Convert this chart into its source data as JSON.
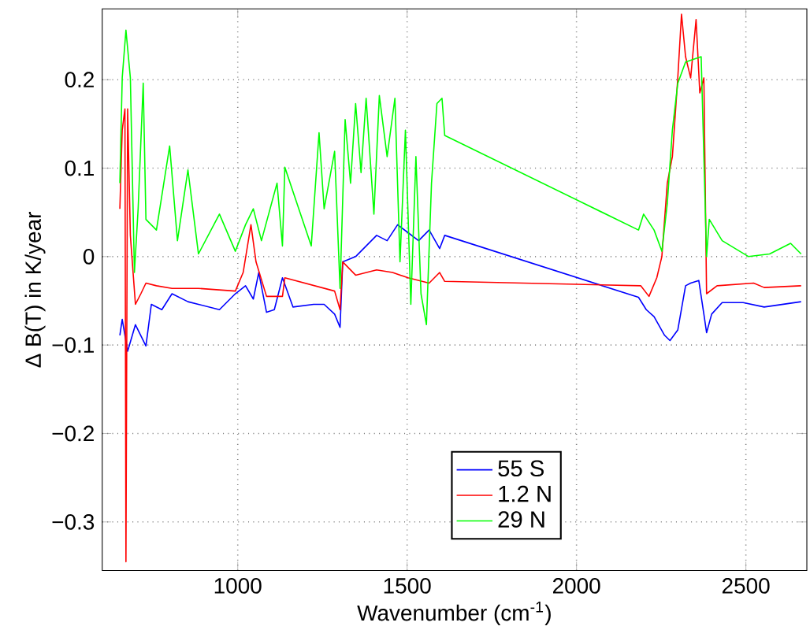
{
  "chart_data": {
    "type": "line",
    "xlabel": "Wavenumber (cm$^{-1}$)",
    "ylabel": "Δ B(T) in K/year",
    "xlim": [
      600,
      2680
    ],
    "ylim": [
      -0.355,
      0.28
    ],
    "xticks": [
      1000,
      1500,
      2000,
      2500
    ],
    "yticks": [
      {
        "value": -0.3,
        "label": "−0.3"
      },
      {
        "value": -0.2,
        "label": "−0.2"
      },
      {
        "value": -0.1,
        "label": "−0.1"
      },
      0,
      0.1,
      0.2
    ],
    "grid": true,
    "legend": "bottom",
    "marker": "none",
    "line_style": "solid",
    "series": [
      {
        "name": "55 S",
        "color": "#0000ff",
        "x": [
          652,
          659,
          675,
          698,
          729,
          745,
          776,
          806,
          853,
          884,
          946,
          993,
          1023,
          1046,
          1062,
          1085,
          1108,
          1132,
          1163,
          1224,
          1255,
          1286,
          1302,
          1310,
          1348,
          1379,
          1410,
          1441,
          1472,
          1503,
          1534,
          1565,
          1596,
          1611,
          2183,
          2206,
          2229,
          2260,
          2276,
          2299,
          2322,
          2337,
          2361,
          2376,
          2384,
          2399,
          2430,
          2492,
          2554,
          2663
        ],
        "values": [
          -0.089,
          -0.071,
          -0.107,
          -0.077,
          -0.101,
          -0.054,
          -0.06,
          -0.042,
          -0.051,
          -0.054,
          -0.06,
          -0.042,
          -0.033,
          -0.048,
          -0.018,
          -0.063,
          -0.06,
          -0.024,
          -0.057,
          -0.054,
          -0.054,
          -0.065,
          -0.08,
          -0.006,
          0,
          0.012,
          0.024,
          0.018,
          0.036,
          0.027,
          0.018,
          0.03,
          0.009,
          0.024,
          -0.046,
          -0.06,
          -0.068,
          -0.089,
          -0.095,
          -0.083,
          -0.033,
          -0.03,
          -0.027,
          -0.065,
          -0.086,
          -0.065,
          -0.052,
          -0.052,
          -0.057,
          -0.051
        ]
      },
      {
        "name": "1.2 N",
        "color": "#ff0000",
        "x": [
          652,
          659,
          667,
          670,
          675,
          683,
          698,
          714,
          729,
          760,
          806,
          884,
          993,
          1016,
          1039,
          1054,
          1085,
          1132,
          1139,
          1286,
          1302,
          1310,
          1348,
          1410,
          1457,
          1503,
          1565,
          1596,
          1611,
          2190,
          2214,
          2237,
          2252,
          2268,
          2283,
          2299,
          2310,
          2322,
          2337,
          2353,
          2364,
          2376,
          2384,
          2415,
          2523,
          2554,
          2663
        ],
        "values": [
          0.054,
          0.143,
          0.167,
          -0.345,
          0.167,
          0.024,
          -0.054,
          -0.042,
          -0.03,
          -0.033,
          -0.036,
          -0.036,
          -0.039,
          -0.018,
          0.036,
          -0.006,
          -0.045,
          -0.045,
          -0.024,
          -0.039,
          -0.06,
          -0.006,
          -0.021,
          -0.015,
          -0.018,
          -0.024,
          -0.03,
          -0.018,
          -0.028,
          -0.033,
          -0.045,
          -0.024,
          0,
          0.083,
          0.113,
          0.202,
          0.274,
          0.226,
          0.202,
          0.268,
          0.185,
          0.202,
          -0.042,
          -0.033,
          -0.03,
          -0.035,
          -0.033
        ]
      },
      {
        "name": "29 N",
        "color": "#00ff00",
        "x": [
          652,
          659,
          670,
          683,
          695,
          706,
          721,
          729,
          760,
          799,
          822,
          853,
          884,
          946,
          993,
          1023,
          1046,
          1070,
          1116,
          1132,
          1139,
          1217,
          1240,
          1255,
          1286,
          1302,
          1317,
          1333,
          1348,
          1364,
          1379,
          1402,
          1418,
          1441,
          1464,
          1479,
          1495,
          1511,
          1526,
          1541,
          1557,
          1572,
          1588,
          1603,
          1611,
          2183,
          2198,
          2229,
          2252,
          2268,
          2283,
          2299,
          2322,
          2368,
          2384,
          2392,
          2430,
          2508,
          2570,
          2632,
          2663
        ],
        "values": [
          0.083,
          0.202,
          0.256,
          0.202,
          -0.018,
          0.054,
          0.196,
          0.042,
          0.03,
          0.125,
          0.018,
          0.098,
          0.003,
          0.048,
          0.006,
          0.036,
          0.054,
          0.018,
          0.083,
          0.012,
          0.101,
          0.012,
          0.14,
          0.054,
          0.119,
          -0.036,
          0.155,
          0.083,
          0.173,
          0.095,
          0.179,
          0.048,
          0.182,
          0.113,
          0.179,
          -0.006,
          0.143,
          -0.054,
          0.113,
          -0.042,
          -0.077,
          0.083,
          0.173,
          0.179,
          0.137,
          0.03,
          0.048,
          0.03,
          0.006,
          0.06,
          0.143,
          0.196,
          0.22,
          0.226,
          0,
          0.042,
          0.018,
          0,
          0.003,
          0.015,
          0.003
        ]
      }
    ]
  }
}
